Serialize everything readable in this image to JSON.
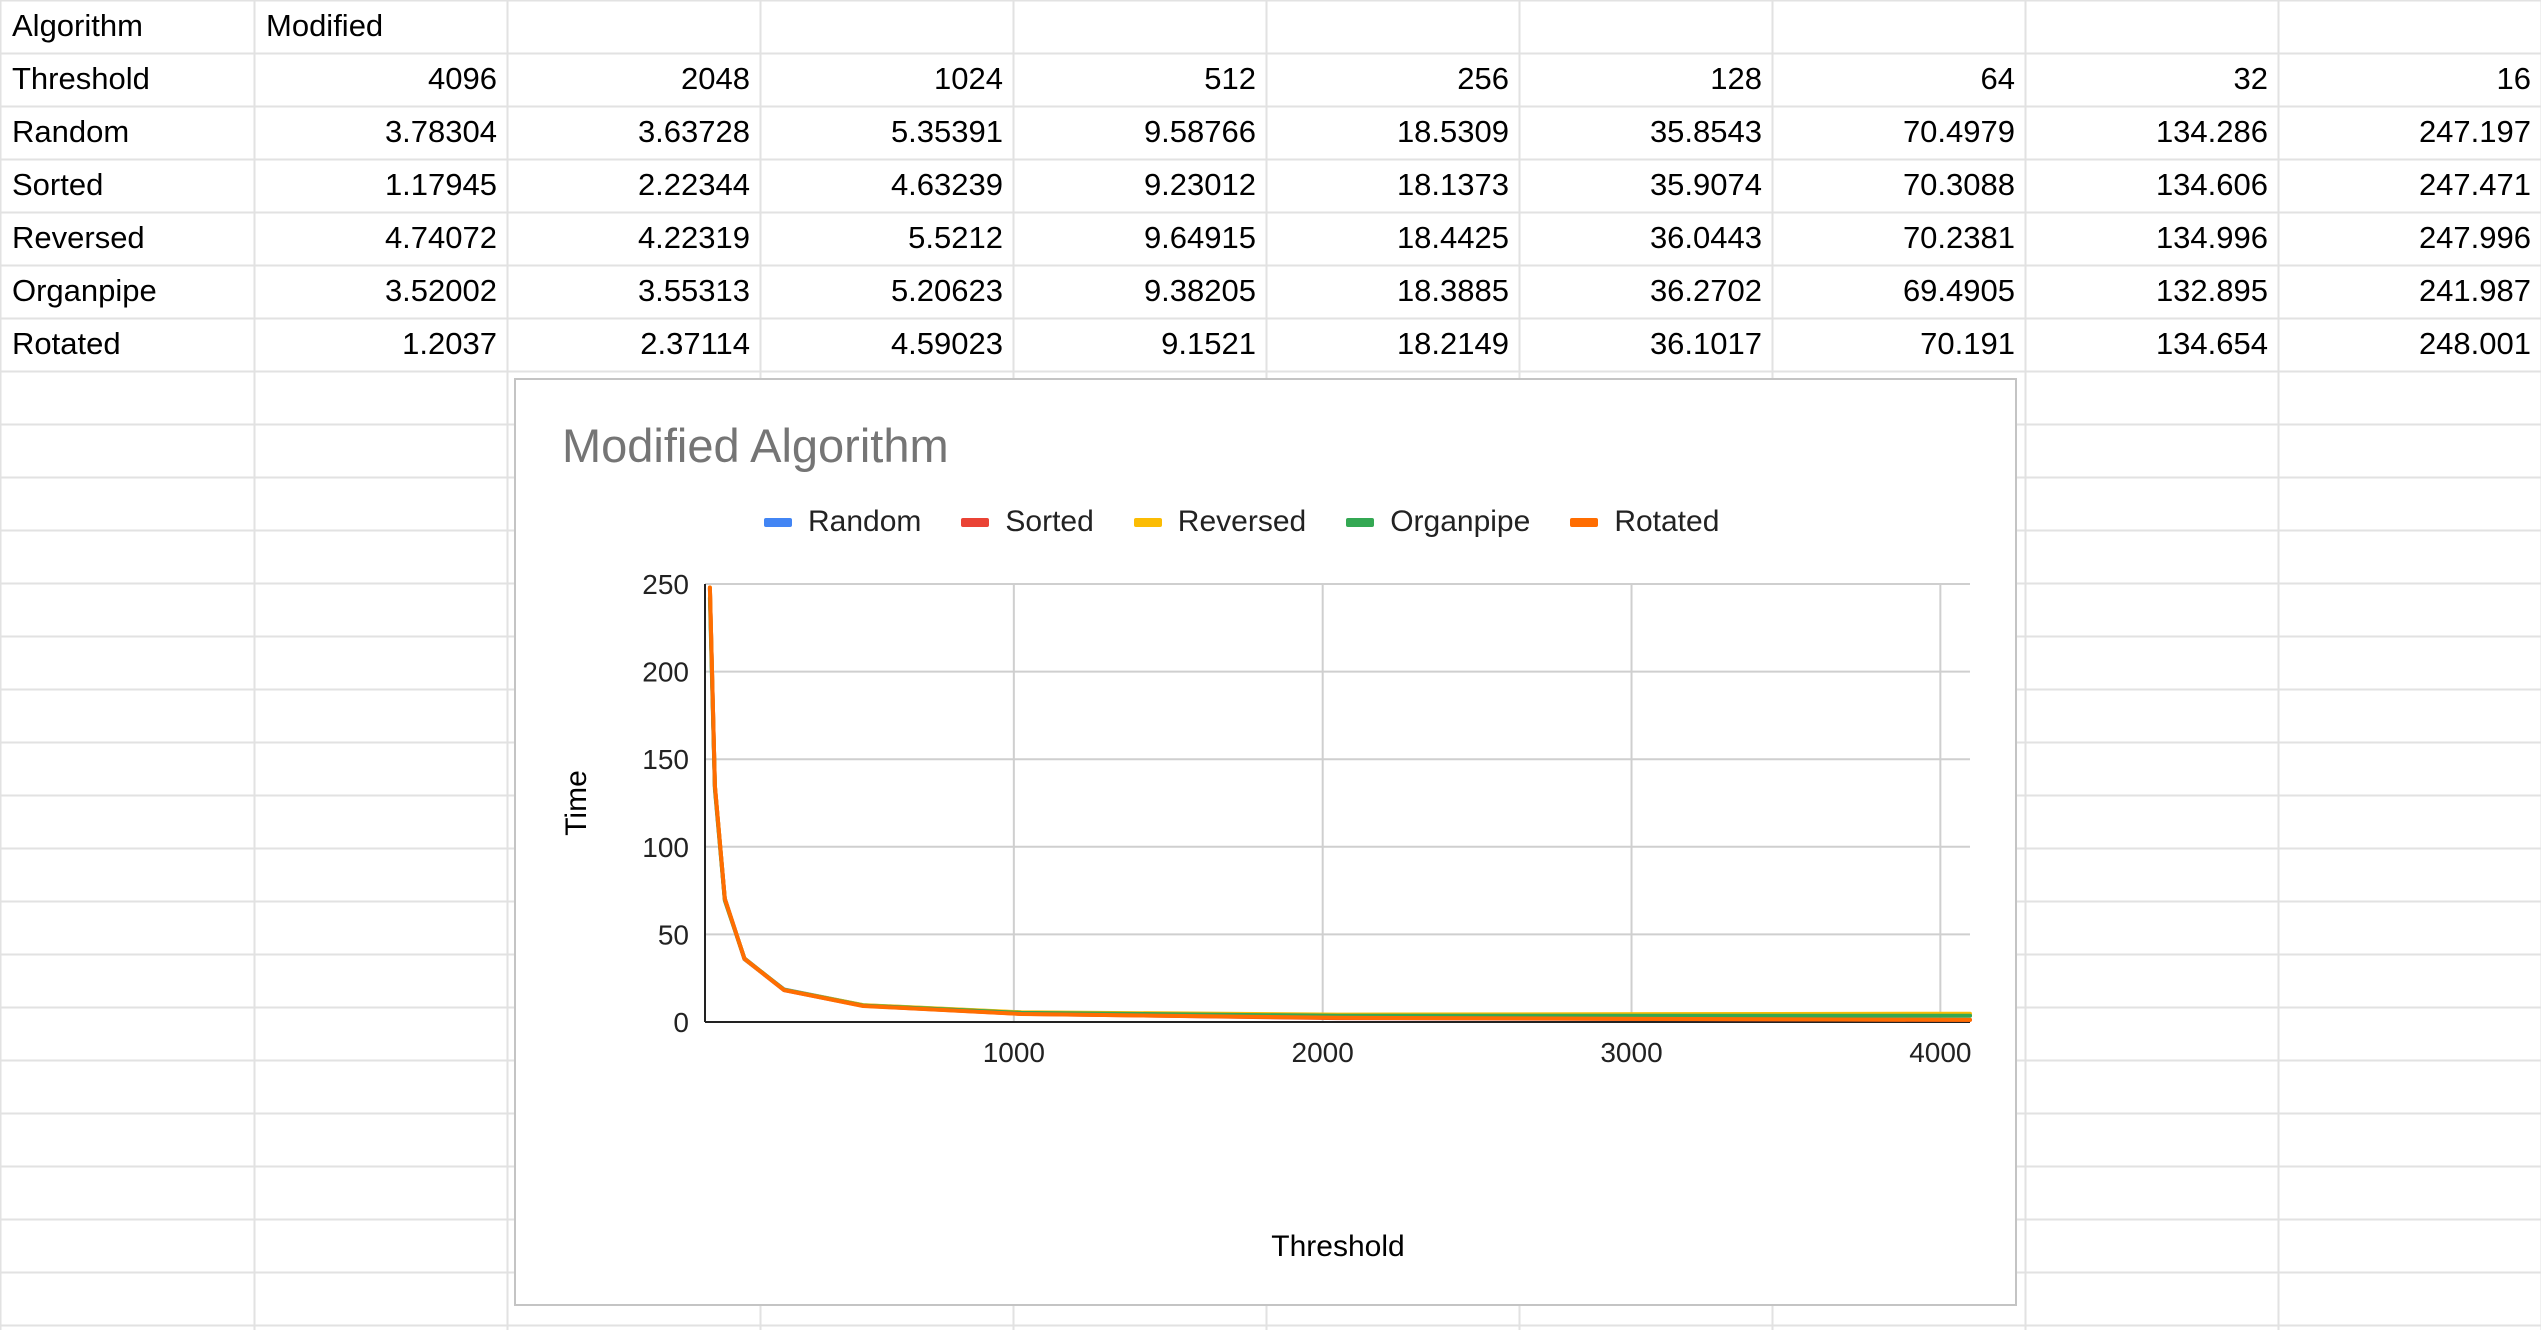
{
  "sheet": {
    "rows": [
      {
        "label": "Algorithm",
        "values": [
          "Modified"
        ]
      },
      {
        "label": "Threshold",
        "values": [
          "4096",
          "2048",
          "1024",
          "512",
          "256",
          "128",
          "64",
          "32",
          "16"
        ]
      },
      {
        "label": "Random",
        "values": [
          "3.78304",
          "3.63728",
          "5.35391",
          "9.58766",
          "18.5309",
          "35.8543",
          "70.4979",
          "134.286",
          "247.197"
        ]
      },
      {
        "label": "Sorted",
        "values": [
          "1.17945",
          "2.22344",
          "4.63239",
          "9.23012",
          "18.1373",
          "35.9074",
          "70.3088",
          "134.606",
          "247.471"
        ]
      },
      {
        "label": "Reversed",
        "values": [
          "4.74072",
          "4.22319",
          "5.5212",
          "9.64915",
          "18.4425",
          "36.0443",
          "70.2381",
          "134.996",
          "247.996"
        ]
      },
      {
        "label": "Organpipe",
        "values": [
          "3.52002",
          "3.55313",
          "5.20623",
          "9.38205",
          "18.3885",
          "36.2702",
          "69.4905",
          "132.895",
          "241.987"
        ]
      },
      {
        "label": "Rotated",
        "values": [
          "1.2037",
          "2.37114",
          "4.59023",
          "9.1521",
          "18.2149",
          "36.1017",
          "70.191",
          "134.654",
          "248.001"
        ]
      }
    ]
  },
  "chart_data": {
    "type": "line",
    "title": "Modified Algorithm",
    "xlabel": "Threshold",
    "ylabel": "Time",
    "x": [
      4096,
      2048,
      1024,
      512,
      256,
      128,
      64,
      32,
      16
    ],
    "xlim": [
      0,
      4096
    ],
    "ylim": [
      0,
      250
    ],
    "xticks": [
      1000,
      2000,
      3000,
      4000
    ],
    "yticks": [
      0,
      50,
      100,
      150,
      200,
      250
    ],
    "grid": true,
    "legend_position": "top",
    "series": [
      {
        "name": "Random",
        "color": "#4285F4",
        "values": [
          3.78304,
          3.63728,
          5.35391,
          9.58766,
          18.5309,
          35.8543,
          70.4979,
          134.286,
          247.197
        ]
      },
      {
        "name": "Sorted",
        "color": "#EA4335",
        "values": [
          1.17945,
          2.22344,
          4.63239,
          9.23012,
          18.1373,
          35.9074,
          70.3088,
          134.606,
          247.471
        ]
      },
      {
        "name": "Reversed",
        "color": "#FBBC04",
        "values": [
          4.74072,
          4.22319,
          5.5212,
          9.64915,
          18.4425,
          36.0443,
          70.2381,
          134.996,
          247.996
        ]
      },
      {
        "name": "Organpipe",
        "color": "#34A853",
        "values": [
          3.52002,
          3.55313,
          5.20623,
          9.38205,
          18.3885,
          36.2702,
          69.4905,
          132.895,
          241.987
        ]
      },
      {
        "name": "Rotated",
        "color": "#FF6D01",
        "values": [
          1.2037,
          2.37114,
          4.59023,
          9.1521,
          18.2149,
          36.1017,
          70.191,
          134.654,
          248.001
        ]
      }
    ]
  }
}
